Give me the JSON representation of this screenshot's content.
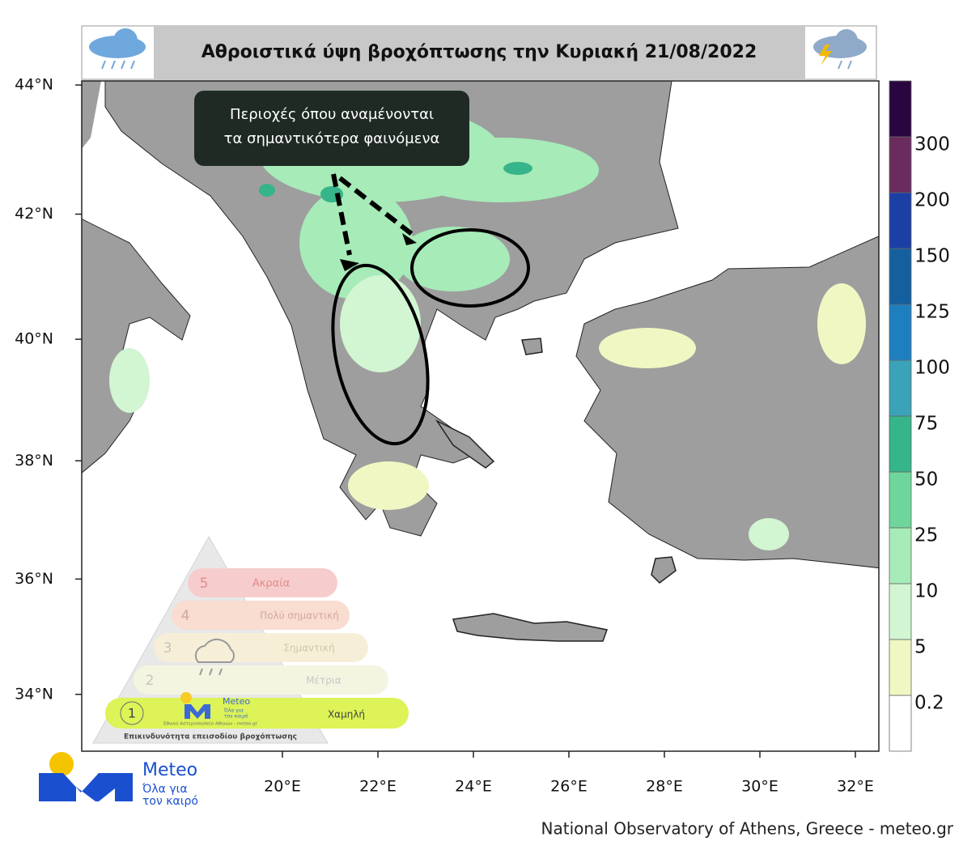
{
  "header": {
    "title": "Αθροιστικά ύψη βροχόπτωσης την Κυριακή 21/08/2022"
  },
  "annotation": {
    "lines": [
      "Περιοχές όπου αναμένονται",
      "τα σημαντικότερα φαινόμενα"
    ]
  },
  "map": {
    "lat_ticks": [
      {
        "value": 44,
        "label": "44°N"
      },
      {
        "value": 42,
        "label": "42°N"
      },
      {
        "value": 40,
        "label": "40°N"
      },
      {
        "value": 38,
        "label": "38°N"
      },
      {
        "value": 36,
        "label": "36°N"
      },
      {
        "value": 34,
        "label": "34°N"
      }
    ],
    "lon_ticks": [
      {
        "value": 20,
        "label": "20°E"
      },
      {
        "value": 22,
        "label": "22°E"
      },
      {
        "value": 24,
        "label": "24°E"
      },
      {
        "value": 26,
        "label": "26°E"
      },
      {
        "value": 28,
        "label": "28°E"
      },
      {
        "value": 30,
        "label": "30°E"
      },
      {
        "value": 32,
        "label": "32°E"
      }
    ]
  },
  "colorbar": {
    "levels": [
      0.2,
      5,
      10,
      25,
      50,
      75,
      100,
      125,
      150,
      200,
      300
    ],
    "colors": [
      "#ffffff",
      "#f0f7c2",
      "#d2f5d2",
      "#a6ebb8",
      "#6fd69b",
      "#36b48a",
      "#3aa3b8",
      "#1e7fc0",
      "#14609e",
      "#1c3fa6",
      "#6a2c5e",
      "#2a0640"
    ]
  },
  "warning": {
    "levels": [
      {
        "number": "5",
        "label": "Ακραία"
      },
      {
        "number": "4",
        "label": "Πολύ σημαντική"
      },
      {
        "number": "3",
        "label": "Σημαντική"
      },
      {
        "number": "2",
        "label": "Μέτρια"
      },
      {
        "number": "1",
        "label": "Χαμηλή"
      }
    ],
    "brand": "Meteo",
    "slogan": [
      "Όλα για",
      "τον καιρό"
    ],
    "credit": "Εθνικό Αστεροσκοπείο Αθηνών - meteo.gr",
    "caption": "Επικινδυνότητα επεισοδίου βροχόπτωσης"
  },
  "logo": {
    "brand": "Meteo",
    "slogan": [
      "Όλα για",
      "τον καιρό"
    ]
  },
  "footer": "National Observatory of Athens, Greece - meteo.gr"
}
